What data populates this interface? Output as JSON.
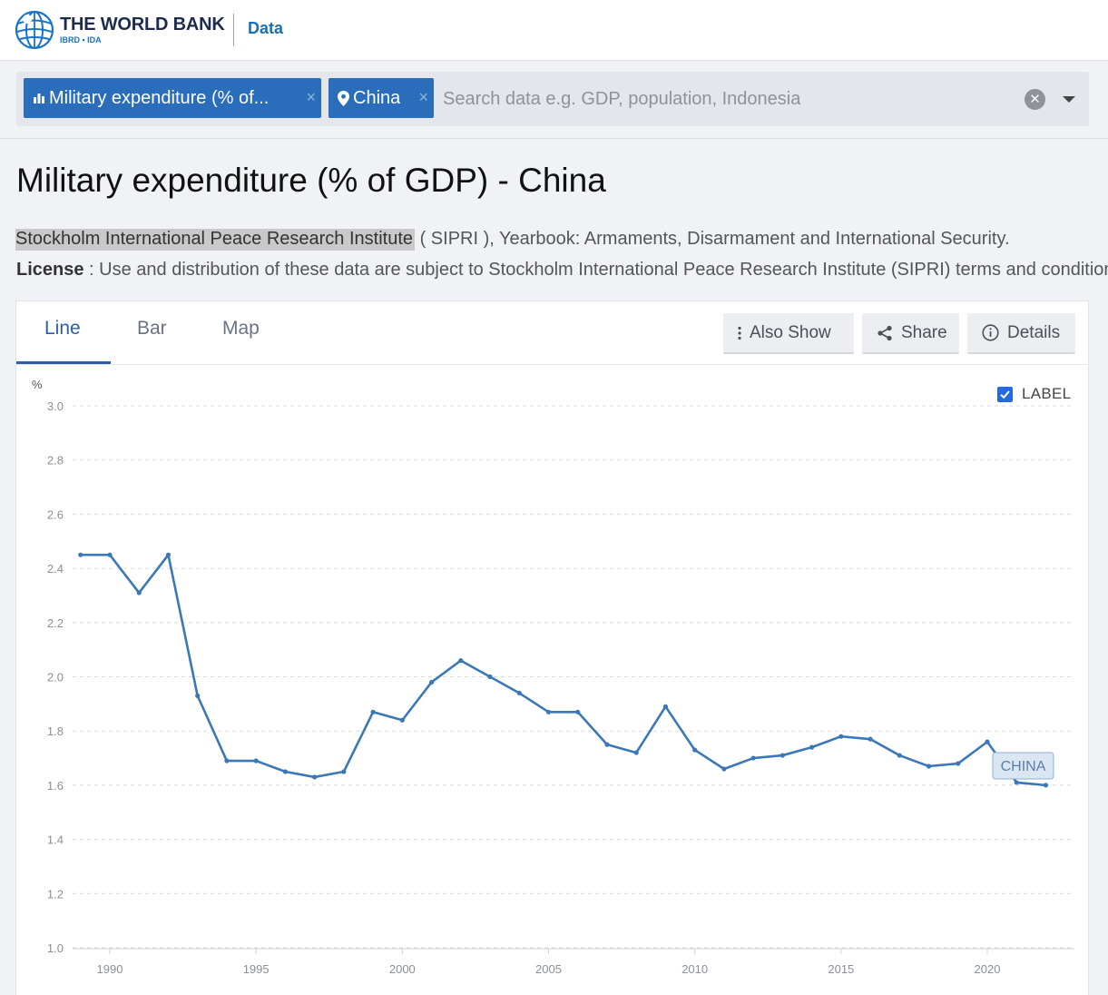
{
  "header": {
    "brand_name": "THE WORLD BANK",
    "brand_sub": "IBRD • IDA",
    "nav_data": "Data"
  },
  "search": {
    "chips": [
      {
        "label": "Military expenditure (% of...",
        "icon": "bar-chart-icon"
      },
      {
        "label": "China",
        "icon": "map-pin-icon"
      }
    ],
    "placeholder": "Search data e.g. GDP, population, Indonesia",
    "remove_glyph": "×",
    "clear_glyph": "✕"
  },
  "page": {
    "title": "Military expenditure (% of GDP) - China",
    "source_link": "Stockholm International Peace Research Institute",
    "source_rest": " ( SIPRI ), Yearbook: Armaments, Disarmament and International Security.",
    "license_label": "License",
    "license_text": " : Use and distribution of these data are subject to Stockholm International Peace Research Institute (SIPRI) terms and conditions."
  },
  "tabs": [
    "Line",
    "Bar",
    "Map"
  ],
  "toolbar": {
    "also_show": "Also Show",
    "share": "Share",
    "details": "Details"
  },
  "label_toggle": {
    "label": "LABEL",
    "checked": true
  },
  "colors": {
    "line": "#3b78b7",
    "brand_blue": "#2a6ebb",
    "accent": "#2469e0"
  },
  "chart_data": {
    "type": "line",
    "ylabel": "%",
    "ylim": [
      1.0,
      3.0
    ],
    "yticks": [
      "3.0",
      "2.8",
      "2.6",
      "2.4",
      "2.2",
      "2.0",
      "1.8",
      "1.6",
      "1.4",
      "1.2",
      "1.0"
    ],
    "xlim": [
      1989,
      2022
    ],
    "xticks": [
      "1990",
      "1995",
      "2000",
      "2005",
      "2010",
      "2015",
      "2020"
    ],
    "grid": true,
    "series": [
      {
        "name": "CHINA",
        "x": [
          1989,
          1990,
          1991,
          1992,
          1993,
          1994,
          1995,
          1996,
          1997,
          1998,
          1999,
          2000,
          2001,
          2002,
          2003,
          2004,
          2005,
          2006,
          2007,
          2008,
          2009,
          2010,
          2011,
          2012,
          2013,
          2014,
          2015,
          2016,
          2017,
          2018,
          2019,
          2020,
          2021,
          2022
        ],
        "values": [
          2.45,
          2.45,
          2.31,
          2.45,
          1.93,
          1.69,
          1.69,
          1.65,
          1.63,
          1.65,
          1.87,
          1.84,
          1.98,
          2.06,
          2.0,
          1.94,
          1.87,
          1.87,
          1.75,
          1.72,
          1.89,
          1.73,
          1.66,
          1.7,
          1.71,
          1.74,
          1.78,
          1.77,
          1.71,
          1.67,
          1.68,
          1.76,
          1.61,
          1.6
        ]
      }
    ]
  }
}
